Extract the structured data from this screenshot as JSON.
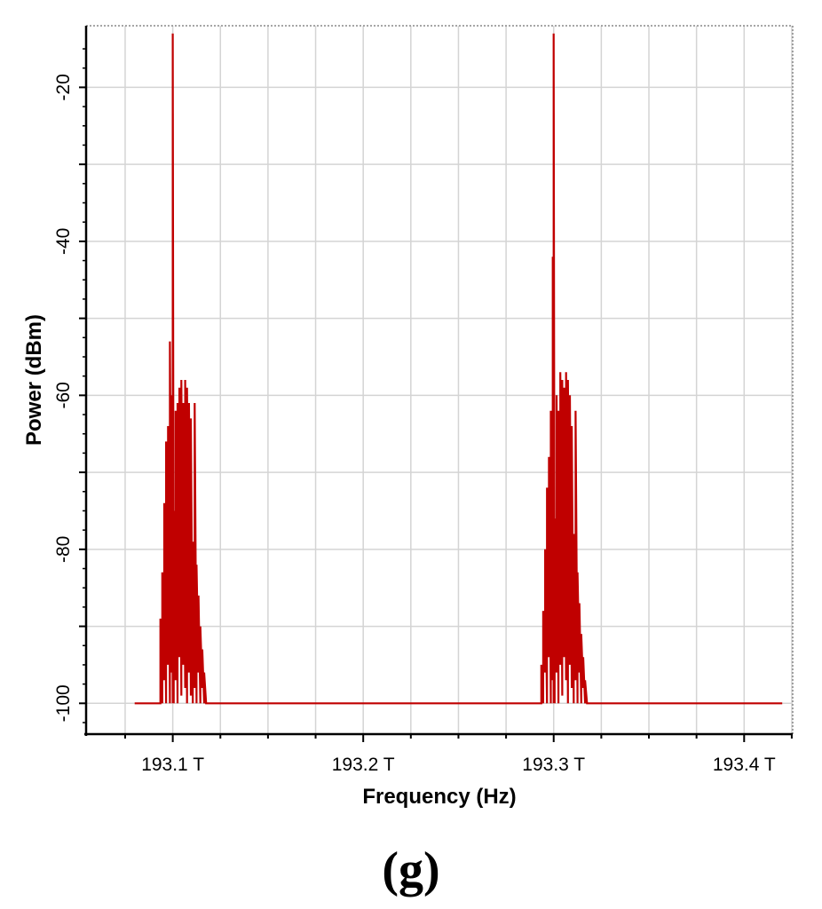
{
  "chart_data": {
    "type": "line",
    "title": "",
    "xlabel": "Frequency (Hz)",
    "ylabel": "Power (dBm)",
    "panel_label": "(g)",
    "xlim": [
      193.0545,
      193.4255
    ],
    "ylim": [
      -104,
      -12
    ],
    "x_ticks": [
      193.1,
      193.2,
      193.3,
      193.4
    ],
    "x_tick_labels": [
      "193.1 T",
      "193.2 T",
      "193.3 T",
      "193.4 T"
    ],
    "y_ticks": [
      -20,
      -40,
      -60,
      -80,
      -100
    ],
    "y_tick_labels": [
      "-20",
      "-40",
      "-60",
      "-80",
      "-100"
    ],
    "grid": true,
    "legend": "none",
    "colors": {
      "series": "#c00000",
      "grid": "#d4d4d4",
      "axis": "#000000",
      "frame": "#888888"
    },
    "series": [
      {
        "x": [
          193.08,
          193.0935,
          193.0935,
          193.0945,
          193.0945,
          193.0955,
          193.0955,
          193.0965,
          193.0965,
          193.0975,
          193.0975,
          193.0985,
          193.0985,
          193.0995,
          193.0995,
          193.1,
          193.1,
          193.1005,
          193.1005,
          193.1015,
          193.1015,
          193.1025,
          193.1025,
          193.1035,
          193.1035,
          193.1045,
          193.1045,
          193.1055,
          193.1055,
          193.1065,
          193.1065,
          193.1075,
          193.1075,
          193.1085,
          193.1085,
          193.1095,
          193.1095,
          193.1105,
          193.1105,
          193.1115,
          193.1115,
          193.1125,
          193.1125,
          193.1135,
          193.1135,
          193.1145,
          193.1145,
          193.1155,
          193.1155,
          193.1165,
          193.1165,
          193.1175,
          193.1175,
          193.1185,
          193.1185,
          193.1195,
          193.1195,
          193.1205,
          193.1205,
          193.18,
          193.22,
          193.28,
          193.2935,
          193.2935,
          193.2945,
          193.2945,
          193.2955,
          193.2955,
          193.2965,
          193.2965,
          193.2975,
          193.2975,
          193.2985,
          193.2985,
          193.2995,
          193.2995,
          193.3,
          193.3,
          193.3005,
          193.3005,
          193.3015,
          193.3015,
          193.3025,
          193.3025,
          193.3035,
          193.3035,
          193.3045,
          193.3045,
          193.3055,
          193.3055,
          193.3065,
          193.3065,
          193.3075,
          193.3075,
          193.3085,
          193.3085,
          193.3095,
          193.3095,
          193.3105,
          193.3105,
          193.3115,
          193.3115,
          193.3125,
          193.3125,
          193.3135,
          193.3135,
          193.3145,
          193.3145,
          193.3155,
          193.3155,
          193.3165,
          193.3165,
          193.3175,
          193.3175,
          193.3185,
          193.3185,
          193.3195,
          193.3195,
          193.3205,
          193.3205,
          193.38,
          193.42
        ],
        "y": [
          -100,
          -100,
          -89,
          -100,
          -83,
          -97,
          -74,
          -100,
          -66,
          -95,
          -64,
          -100,
          -53,
          -96,
          -60,
          -100,
          -13,
          -100,
          -75,
          -97,
          -62,
          -100,
          -61,
          -94,
          -59,
          -99,
          -58,
          -95,
          -61,
          -98,
          -58,
          -100,
          -59,
          -96,
          -61,
          -99,
          -63,
          -100,
          -79,
          -98,
          -61,
          -100,
          -82,
          -96,
          -86,
          -100,
          -90,
          -98,
          -93,
          -100,
          -96,
          -100,
          -100,
          -100,
          -100,
          -100,
          -100,
          -100,
          -100,
          -100,
          -100,
          -100,
          -100,
          -95,
          -100,
          -88,
          -96,
          -80,
          -100,
          -72,
          -94,
          -68,
          -100,
          -62,
          -97,
          -42,
          -100,
          -13,
          -100,
          -76,
          -96,
          -60,
          -100,
          -62,
          -95,
          -57,
          -99,
          -58,
          -94,
          -59,
          -97,
          -57,
          -100,
          -58,
          -95,
          -60,
          -98,
          -64,
          -100,
          -78,
          -97,
          -62,
          -100,
          -83,
          -96,
          -87,
          -100,
          -91,
          -98,
          -94,
          -100,
          -97,
          -100,
          -100,
          -100,
          -100,
          -100,
          -100,
          -100,
          -100,
          -100,
          -100
        ]
      }
    ]
  }
}
